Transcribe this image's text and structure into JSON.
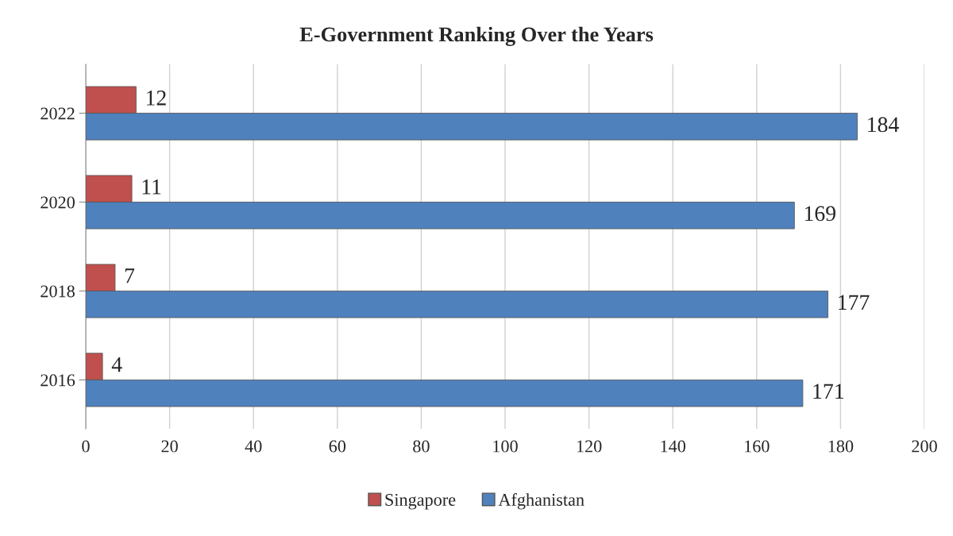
{
  "chart_data": {
    "type": "bar",
    "orientation": "horizontal",
    "title": "E-Government Ranking Over the Years",
    "categories": [
      "2022",
      "2020",
      "2018",
      "2016"
    ],
    "series": [
      {
        "name": "Singapore",
        "color": "#c0504d",
        "values": [
          12,
          11,
          7,
          4
        ]
      },
      {
        "name": "Afghanistan",
        "color": "#4f81bd",
        "values": [
          184,
          169,
          177,
          171
        ]
      }
    ],
    "xlim": [
      0,
      200
    ],
    "xticks": [
      0,
      20,
      40,
      60,
      80,
      100,
      120,
      140,
      160,
      180,
      200
    ],
    "grid": "x",
    "legend": "bottom",
    "data_labels": true
  }
}
